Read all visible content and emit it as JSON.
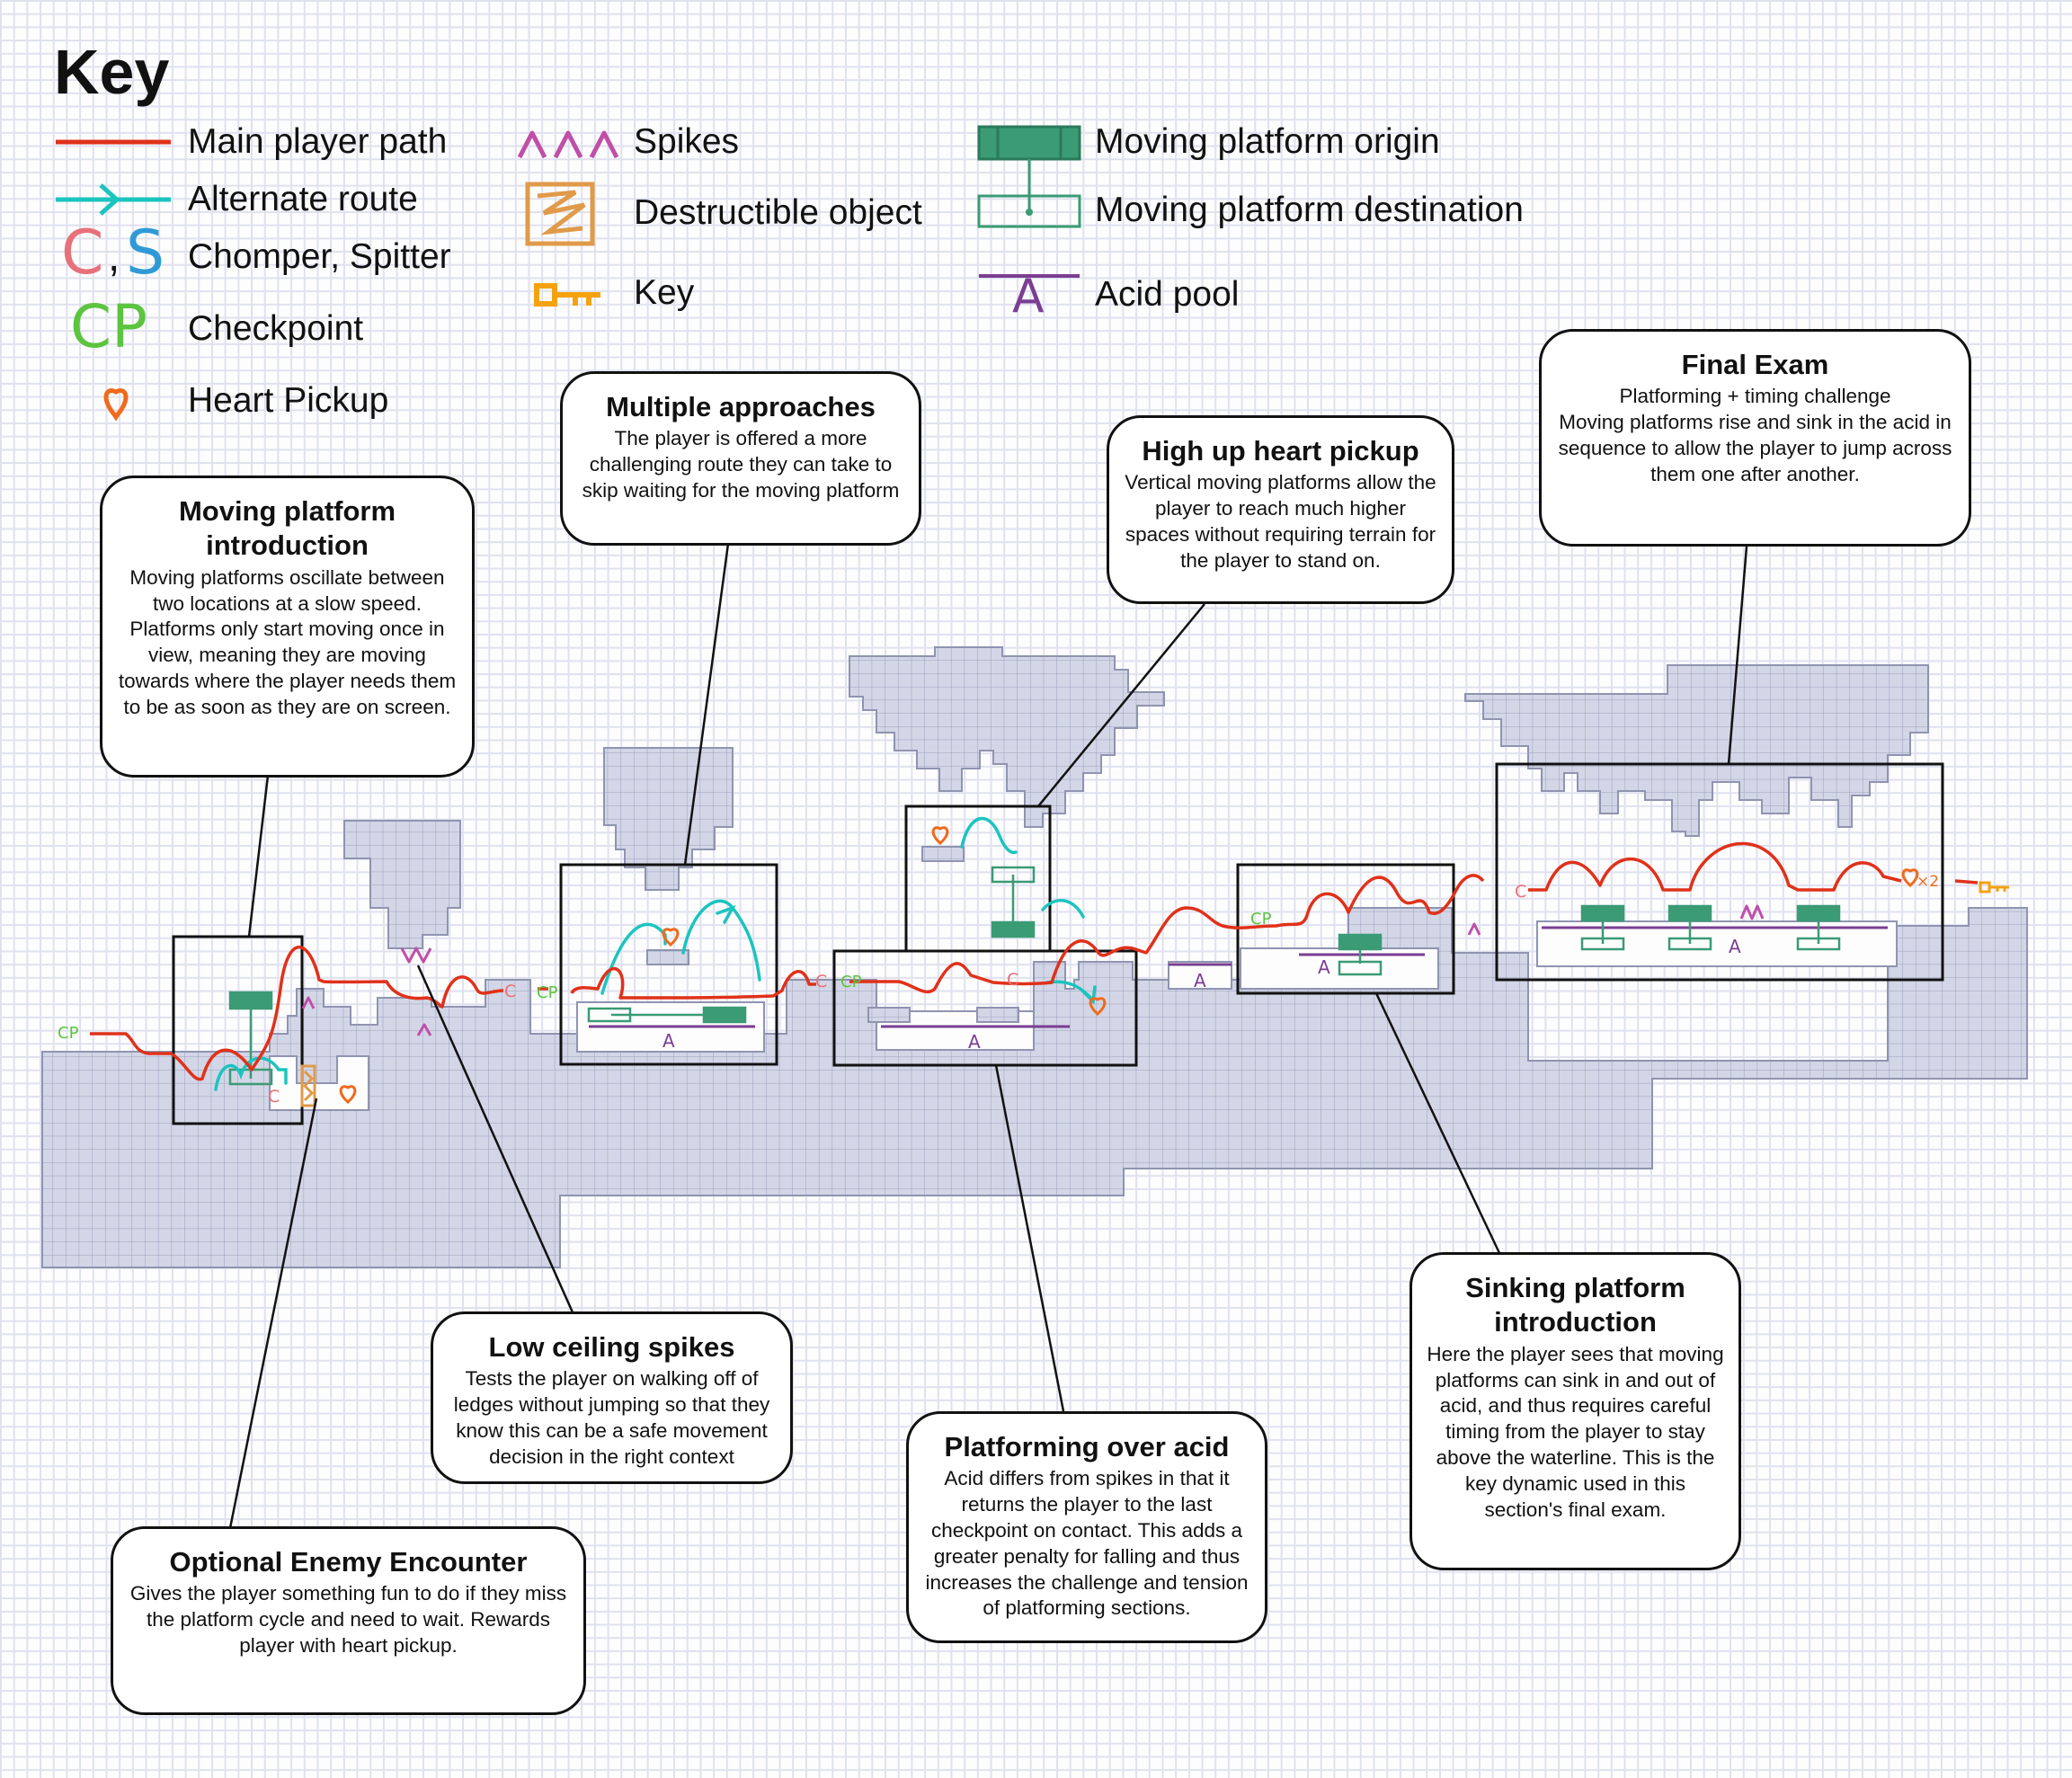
{
  "key": {
    "title": "Key",
    "items": {
      "main_path": "Main player path",
      "alternate_route": "Alternate route",
      "enemies": "Chomper, Spitter",
      "enemy_c": "C",
      "enemy_s": "S",
      "checkpoint": "Checkpoint",
      "checkpoint_glyph": "CP",
      "heart": "Heart Pickup",
      "spikes": "Spikes",
      "destructible": "Destructible object",
      "key": "Key",
      "platform_origin": "Moving platform origin",
      "platform_destination": "Moving platform destination",
      "acid_pool": "Acid pool",
      "acid_glyph": "A"
    }
  },
  "map_labels": {
    "cp": "CP",
    "c": "C",
    "a": "A",
    "hearts_x2": "×2"
  },
  "callouts": {
    "moving_platform_intro": {
      "title": "Moving platform introduction",
      "body": "Moving platforms oscillate between two locations at a slow speed. Platforms only start moving once in view, meaning they are moving towards where the player needs them to be as soon as they are on screen."
    },
    "multiple_approaches": {
      "title": "Multiple approaches",
      "body": "The player is offered a more challenging route they can take to skip waiting for the moving platform"
    },
    "high_up_heart": {
      "title": "High up heart pickup",
      "body": "Vertical moving platforms allow the player to reach much higher spaces without requiring terrain for the player to stand on."
    },
    "final_exam": {
      "title": "Final Exam",
      "body": "Platforming + timing challenge\nMoving platforms rise and sink in the acid in sequence to allow the player to jump across them one after another."
    },
    "low_ceiling_spikes": {
      "title": "Low ceiling spikes",
      "body": "Tests the player on walking off of ledges without jumping so that they know this can be a safe movement decision in the right context"
    },
    "platforming_over_acid": {
      "title": "Platforming over acid",
      "body": "Acid differs from spikes in that it returns the player to the last checkpoint on contact. This adds a greater penalty for falling and thus increases the challenge and tension of platforming sections."
    },
    "sinking_platform_intro": {
      "title": "Sinking platform introduction",
      "body": "Here the player sees that moving platforms can sink in and out of acid, and thus requires careful timing from the player to stay above the waterline. This is the key dynamic used in this section's final exam."
    },
    "optional_enemy": {
      "title": "Optional Enemy Encounter",
      "body": "Gives the player something fun to do if they miss the platform cycle and need to wait. Rewards player with heart pickup."
    }
  },
  "colors": {
    "terrain": "#d3d6e6",
    "terrain_edge": "#8f94b0",
    "main_path": "#e0311a",
    "alt_route": "#1bc4bf",
    "chomper": "#e8707a",
    "spitter": "#2f9ad6",
    "checkpoint": "#5cc43f",
    "heart": "#f06a1c",
    "spikes": "#c04fa8",
    "destructible": "#e09a4a",
    "key": "#f5a20f",
    "platform": "#3a9b74",
    "acid": "#7a3e92"
  }
}
